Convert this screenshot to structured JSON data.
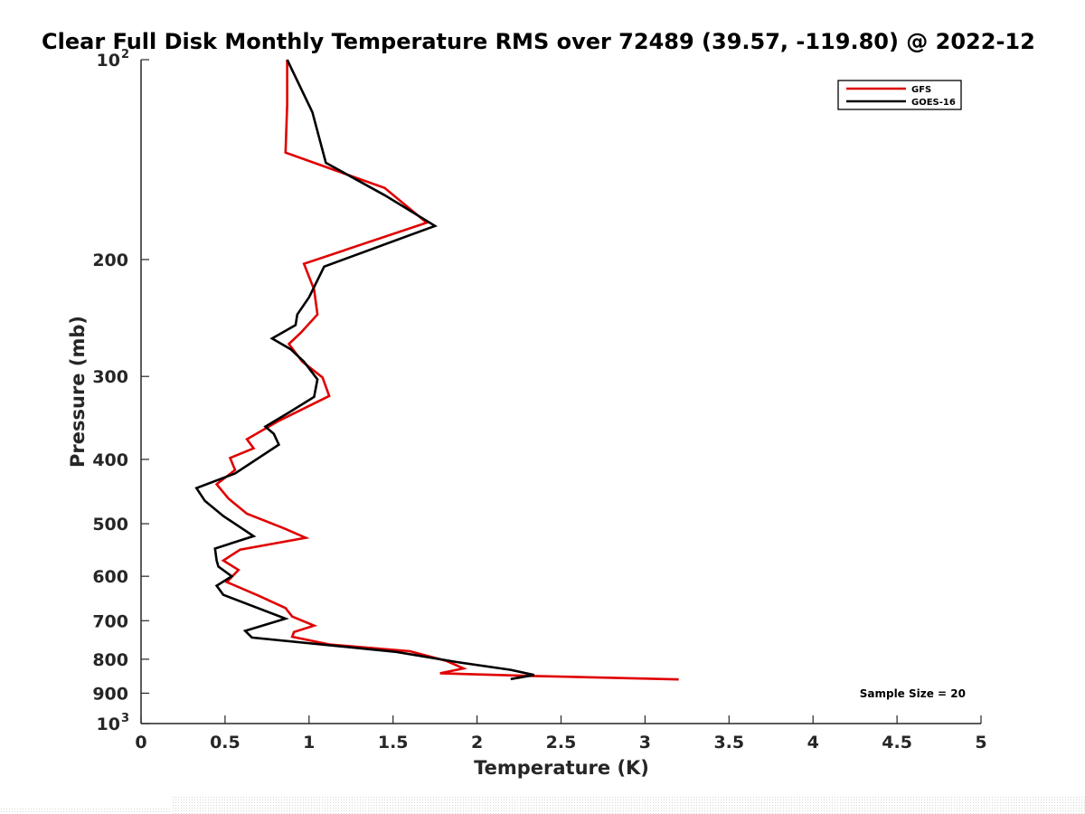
{
  "chart_data": {
    "type": "line",
    "title": "Clear Full Disk Monthly Temperature RMS over 72489 (39.57, -119.80) @ 2022-12",
    "xlabel": "Temperature (K)",
    "ylabel": "Pressure (mb)",
    "xlim": [
      0,
      5
    ],
    "ylim": [
      100,
      1000
    ],
    "yscale": "log",
    "yreverse": true,
    "xticks": [
      0,
      0.5,
      1,
      1.5,
      2,
      2.5,
      3,
      3.5,
      4,
      4.5,
      5
    ],
    "xtick_labels": [
      "0",
      "0.5",
      "1",
      "1.5",
      "2",
      "2.5",
      "3",
      "3.5",
      "4",
      "4.5",
      "5"
    ],
    "yticks": [
      {
        "value": 100,
        "label": "10",
        "exp": "2"
      },
      {
        "value": 200,
        "label": "200"
      },
      {
        "value": 300,
        "label": "300"
      },
      {
        "value": 400,
        "label": "400"
      },
      {
        "value": 500,
        "label": "500"
      },
      {
        "value": 600,
        "label": "600"
      },
      {
        "value": 700,
        "label": "700"
      },
      {
        "value": 800,
        "label": "800"
      },
      {
        "value": 900,
        "label": "900"
      },
      {
        "value": 1000,
        "label": "10",
        "exp": "3"
      }
    ],
    "legend_position": "top-right",
    "annotation": "Sample Size = 20",
    "series": [
      {
        "name": "GFS",
        "color": "#e00000",
        "points": [
          [
            0.87,
            100
          ],
          [
            0.87,
            117
          ],
          [
            0.86,
            138
          ],
          [
            1.45,
            156
          ],
          [
            1.7,
            176
          ],
          [
            0.97,
            203
          ],
          [
            1.03,
            222
          ],
          [
            1.05,
            242
          ],
          [
            0.95,
            258
          ],
          [
            0.88,
            268
          ],
          [
            0.96,
            285
          ],
          [
            1.08,
            301
          ],
          [
            1.12,
            321
          ],
          [
            0.82,
            350
          ],
          [
            0.63,
            373
          ],
          [
            0.67,
            385
          ],
          [
            0.53,
            398
          ],
          [
            0.56,
            415
          ],
          [
            0.45,
            436
          ],
          [
            0.52,
            458
          ],
          [
            0.63,
            483
          ],
          [
            0.85,
            508
          ],
          [
            0.98,
            525
          ],
          [
            0.59,
            547
          ],
          [
            0.49,
            568
          ],
          [
            0.58,
            587
          ],
          [
            0.51,
            612
          ],
          [
            0.7,
            642
          ],
          [
            0.86,
            670
          ],
          [
            0.9,
            690
          ],
          [
            1.03,
            712
          ],
          [
            0.91,
            728
          ],
          [
            0.9,
            740
          ],
          [
            1.12,
            760
          ],
          [
            1.6,
            778
          ],
          [
            1.82,
            805
          ],
          [
            1.92,
            826
          ],
          [
            1.78,
            840
          ],
          [
            2.34,
            848
          ],
          [
            3.2,
            858
          ]
        ]
      },
      {
        "name": "GOES-16",
        "color": "#000000",
        "points": [
          [
            0.87,
            100
          ],
          [
            1.02,
            120
          ],
          [
            1.1,
            143
          ],
          [
            1.45,
            160
          ],
          [
            1.75,
            178
          ],
          [
            1.09,
            205
          ],
          [
            1.0,
            228
          ],
          [
            0.93,
            242
          ],
          [
            0.92,
            251
          ],
          [
            0.78,
            263
          ],
          [
            0.89,
            273
          ],
          [
            0.97,
            285
          ],
          [
            1.05,
            303
          ],
          [
            1.03,
            322
          ],
          [
            0.88,
            340
          ],
          [
            0.74,
            357
          ],
          [
            0.79,
            366
          ],
          [
            0.82,
            380
          ],
          [
            0.56,
            420
          ],
          [
            0.33,
            442
          ],
          [
            0.38,
            462
          ],
          [
            0.49,
            487
          ],
          [
            0.67,
            522
          ],
          [
            0.44,
            545
          ],
          [
            0.45,
            568
          ],
          [
            0.46,
            580
          ],
          [
            0.54,
            600
          ],
          [
            0.45,
            620
          ],
          [
            0.49,
            640
          ],
          [
            0.86,
            695
          ],
          [
            0.62,
            725
          ],
          [
            0.66,
            742
          ],
          [
            1.52,
            780
          ],
          [
            1.88,
            808
          ],
          [
            2.2,
            830
          ],
          [
            2.34,
            845
          ],
          [
            2.2,
            857
          ]
        ]
      }
    ]
  }
}
